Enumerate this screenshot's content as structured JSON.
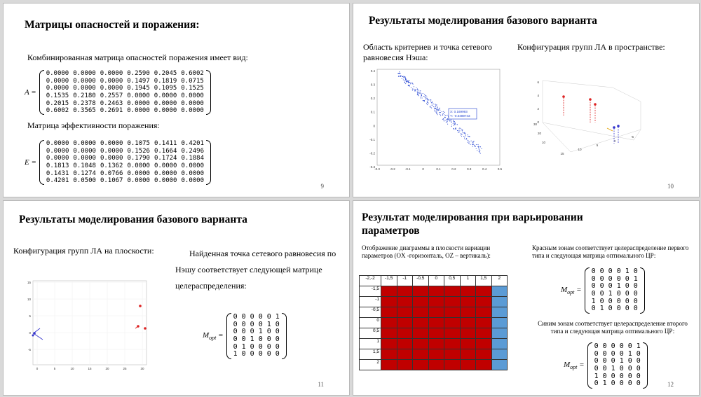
{
  "slides": [
    {
      "title": "Матрицы опасностей и поражения:",
      "text1": "Комбинированная матрица опасностей поражения имеет вид:",
      "matrixA_label": "A =",
      "matrixA": [
        [
          "0.0000",
          "0.0000",
          "0.0000",
          "0.2590",
          "0.2045",
          "0.6002"
        ],
        [
          "0.0000",
          "0.0000",
          "0.0000",
          "0.1497",
          "0.1819",
          "0.0715"
        ],
        [
          "0.0000",
          "0.0000",
          "0.0000",
          "0.1945",
          "0.1095",
          "0.1525"
        ],
        [
          "0.1535",
          "0.2180",
          "0.2557",
          "0.0000",
          "0.0000",
          "0.0000"
        ],
        [
          "0.2015",
          "0.2378",
          "0.2463",
          "0.0000",
          "0.0000",
          "0.0000"
        ],
        [
          "0.6002",
          "0.3565",
          "0.2691",
          "0.0000",
          "0.0000",
          "0.0000"
        ]
      ],
      "text2": "Матрица эффективности поражения:",
      "matrixE_label": "E =",
      "matrixE": [
        [
          "0.0000",
          "0.0000",
          "0.0000",
          "0.1075",
          "0.1411",
          "0.4201"
        ],
        [
          "0.0000",
          "0.0000",
          "0.0000",
          "0.1526",
          "0.1664",
          "0.2496"
        ],
        [
          "0.0000",
          "0.0000",
          "0.0000",
          "0.1790",
          "0.1724",
          "0.1884"
        ],
        [
          "0.1813",
          "0.1048",
          "0.1362",
          "0.0000",
          "0.0000",
          "0.0000"
        ],
        [
          "0.1431",
          "0.1274",
          "0.0766",
          "0.0000",
          "0.0000",
          "0.0000"
        ],
        [
          "0.4201",
          "0.0500",
          "0.1067",
          "0.0000",
          "0.0000",
          "0.0000"
        ]
      ],
      "page": "9"
    },
    {
      "title": "Результаты моделирования базового варианта",
      "text_left": "Область критериев и точка сетевого равновесия Нэша:",
      "text_right": "Конфигурация групп ЛА в пространстве:",
      "scatter_x_ticks": [
        "-0.3",
        "-0.2",
        "-0.1",
        "0",
        "0.1",
        "0.2",
        "0.3",
        "0.4",
        "0.5"
      ],
      "scatter_y_ticks": [
        "0.4",
        "0.3",
        "0.2",
        "0.1",
        "0",
        "-0.1",
        "-0.2",
        "-0.3"
      ],
      "tooltip_x": "X: 0.169993",
      "tooltip_y": "Y: -0.0489743",
      "plot3d_y_ticks": [
        "6",
        "4",
        "2",
        "0"
      ],
      "plot3d_depth_ticks": [
        "30",
        "20",
        "10"
      ],
      "plot3d_x_ticks": [
        "15",
        "10",
        "5",
        "0",
        "-5"
      ],
      "page": "10"
    },
    {
      "title": "Результаты моделирования базового варианта",
      "text_left": "Конфигурация групп ЛА на плоскости:",
      "text_right": "Найденная точка сетевого равновесия по Нэшу соответствует следующей матрице целераспределения:",
      "matrix_label": "M",
      "matrix_sub": "opt",
      "matrix": [
        [
          "0",
          "0",
          "0",
          "0",
          "0",
          "1"
        ],
        [
          "0",
          "0",
          "0",
          "0",
          "1",
          "0"
        ],
        [
          "0",
          "0",
          "0",
          "1",
          "0",
          "0"
        ],
        [
          "0",
          "0",
          "1",
          "0",
          "0",
          "0"
        ],
        [
          "0",
          "1",
          "0",
          "0",
          "0",
          "0"
        ],
        [
          "1",
          "0",
          "0",
          "0",
          "0",
          "0"
        ]
      ],
      "plane_y_ticks": [
        "15",
        "10",
        "5",
        "0",
        "-5"
      ],
      "plane_x_ticks": [
        "0",
        "5",
        "10",
        "15",
        "20",
        "25",
        "30"
      ],
      "page": "11"
    },
    {
      "title": "Результат моделирования при варьировании параметров",
      "text_left": "Отображение диаграммы в плоскости вариации параметров (OX -горизонталь, OZ – вертикаль):",
      "grid_cols": [
        "-2,-2",
        "-1,5",
        "-1",
        "-0,5",
        "0",
        "0,5",
        "1",
        "1,5",
        "2"
      ],
      "grid_rows": [
        "-1,5",
        "-1",
        "-0,5",
        "0",
        "0,5",
        "1",
        "1,5",
        "2"
      ],
      "red_text": "Красным зонам соответствует целераспределение первого типа и следующая матрица оптимального ЦР:",
      "matrix1": [
        [
          "0",
          "0",
          "0",
          "0",
          "1",
          "0"
        ],
        [
          "0",
          "0",
          "0",
          "0",
          "0",
          "1"
        ],
        [
          "0",
          "0",
          "0",
          "1",
          "0",
          "0"
        ],
        [
          "0",
          "0",
          "1",
          "0",
          "0",
          "0"
        ],
        [
          "1",
          "0",
          "0",
          "0",
          "0",
          "0"
        ],
        [
          "0",
          "1",
          "0",
          "0",
          "0",
          "0"
        ]
      ],
      "blue_text": "Синим зонам соответствует целераспределение второго типа и       следующая матрица оптимального ЦР:",
      "matrix2": [
        [
          "0",
          "0",
          "0",
          "0",
          "0",
          "1"
        ],
        [
          "0",
          "0",
          "0",
          "0",
          "1",
          "0"
        ],
        [
          "0",
          "0",
          "0",
          "1",
          "0",
          "0"
        ],
        [
          "0",
          "0",
          "1",
          "0",
          "0",
          "0"
        ],
        [
          "1",
          "0",
          "0",
          "0",
          "0",
          "0"
        ],
        [
          "0",
          "1",
          "0",
          "0",
          "0",
          "0"
        ]
      ],
      "matrix_label": "M",
      "matrix_sub": "opt",
      "page": "12"
    }
  ],
  "colors": {
    "red_zone": "#c00000",
    "blue_zone": "#5b9bd5",
    "scatter": "#1f3fd0"
  }
}
